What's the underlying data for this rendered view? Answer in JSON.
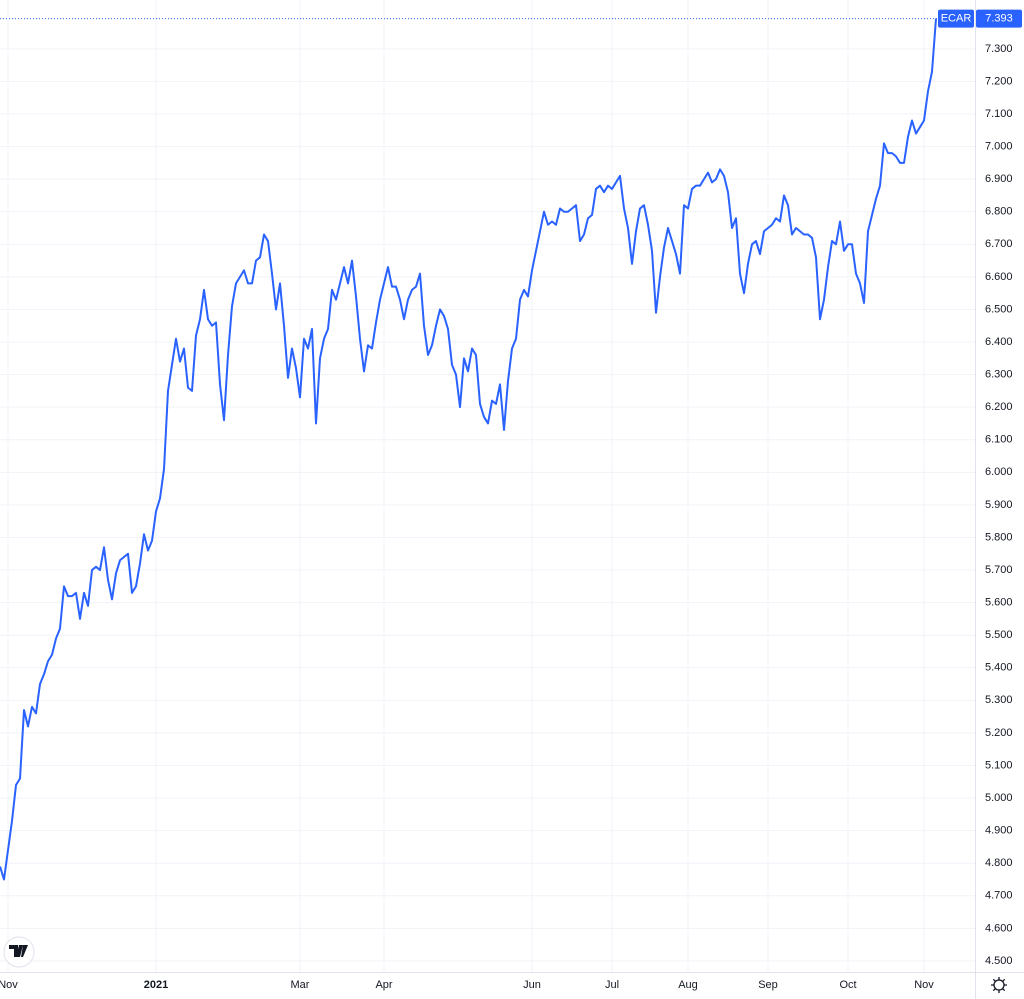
{
  "chart_data": {
    "type": "line",
    "series": [
      {
        "name": "ECAR",
        "color": "#2962ff",
        "values": [
          4.79,
          4.75,
          4.84,
          4.93,
          5.04,
          5.06,
          5.27,
          5.22,
          5.28,
          5.26,
          5.35,
          5.38,
          5.42,
          5.44,
          5.49,
          5.52,
          5.65,
          5.62,
          5.62,
          5.63,
          5.55,
          5.63,
          5.59,
          5.7,
          5.71,
          5.7,
          5.77,
          5.67,
          5.61,
          5.69,
          5.73,
          5.74,
          5.75,
          5.63,
          5.65,
          5.72,
          5.81,
          5.76,
          5.79,
          5.88,
          5.92,
          6.01,
          6.25,
          6.33,
          6.41,
          6.34,
          6.38,
          6.26,
          6.25,
          6.42,
          6.47,
          6.56,
          6.47,
          6.45,
          6.46,
          6.27,
          6.16,
          6.36,
          6.51,
          6.58,
          6.6,
          6.62,
          6.58,
          6.58,
          6.65,
          6.66,
          6.73,
          6.71,
          6.61,
          6.5,
          6.58,
          6.45,
          6.29,
          6.38,
          6.32,
          6.23,
          6.41,
          6.38,
          6.44,
          6.15,
          6.35,
          6.41,
          6.44,
          6.56,
          6.53,
          6.58,
          6.63,
          6.58,
          6.65,
          6.54,
          6.41,
          6.31,
          6.39,
          6.38,
          6.46,
          6.53,
          6.58,
          6.63,
          6.57,
          6.57,
          6.53,
          6.47,
          6.53,
          6.56,
          6.57,
          6.61,
          6.45,
          6.36,
          6.39,
          6.45,
          6.5,
          6.48,
          6.44,
          6.33,
          6.3,
          6.2,
          6.35,
          6.31,
          6.38,
          6.36,
          6.21,
          6.17,
          6.15,
          6.22,
          6.21,
          6.27,
          6.13,
          6.28,
          6.38,
          6.41,
          6.53,
          6.56,
          6.54,
          6.62,
          6.68,
          6.74,
          6.8,
          6.76,
          6.77,
          6.76,
          6.81,
          6.8,
          6.8,
          6.81,
          6.82,
          6.71,
          6.73,
          6.78,
          6.79,
          6.87,
          6.88,
          6.86,
          6.88,
          6.87,
          6.89,
          6.91,
          6.81,
          6.75,
          6.64,
          6.74,
          6.81,
          6.82,
          6.76,
          6.68,
          6.49,
          6.6,
          6.69,
          6.75,
          6.71,
          6.67,
          6.61,
          6.82,
          6.81,
          6.87,
          6.88,
          6.88,
          6.9,
          6.92,
          6.89,
          6.9,
          6.93,
          6.91,
          6.86,
          6.75,
          6.78,
          6.61,
          6.55,
          6.64,
          6.7,
          6.71,
          6.67,
          6.74,
          6.75,
          6.76,
          6.78,
          6.77,
          6.85,
          6.82,
          6.73,
          6.75,
          6.74,
          6.73,
          6.73,
          6.72,
          6.66,
          6.47,
          6.53,
          6.63,
          6.71,
          6.7,
          6.77,
          6.68,
          6.7,
          6.7,
          6.61,
          6.58,
          6.52,
          6.74,
          6.79,
          6.84,
          6.88,
          7.01,
          6.98,
          6.98,
          6.97,
          6.95,
          6.95,
          7.03,
          7.08,
          7.04,
          7.06,
          7.08,
          7.17,
          7.23,
          7.393
        ]
      }
    ],
    "xlim": [
      0,
      243.75
    ],
    "xticks": [
      {
        "value": 2,
        "label": "Nov"
      },
      {
        "value": 39,
        "label": "2021"
      },
      {
        "value": 75,
        "label": "Mar"
      },
      {
        "value": 96,
        "label": "Apr"
      },
      {
        "value": 133,
        "label": "Jun"
      },
      {
        "value": 153,
        "label": "Jul"
      },
      {
        "value": 172,
        "label": "Aug"
      },
      {
        "value": 192,
        "label": "Sep"
      },
      {
        "value": 212,
        "label": "Oct"
      },
      {
        "value": 231,
        "label": "Nov"
      }
    ],
    "ylim": [
      4.466,
      7.45
    ],
    "yticks": [
      {
        "value": 4.5,
        "label": "4.500"
      },
      {
        "value": 4.6,
        "label": "4.600"
      },
      {
        "value": 4.7,
        "label": "4.700"
      },
      {
        "value": 4.8,
        "label": "4.800"
      },
      {
        "value": 4.9,
        "label": "4.900"
      },
      {
        "value": 5.0,
        "label": "5.000"
      },
      {
        "value": 5.1,
        "label": "5.100"
      },
      {
        "value": 5.2,
        "label": "5.200"
      },
      {
        "value": 5.3,
        "label": "5.300"
      },
      {
        "value": 5.4,
        "label": "5.400"
      },
      {
        "value": 5.5,
        "label": "5.500"
      },
      {
        "value": 5.6,
        "label": "5.600"
      },
      {
        "value": 5.7,
        "label": "5.700"
      },
      {
        "value": 5.8,
        "label": "5.800"
      },
      {
        "value": 5.9,
        "label": "5.900"
      },
      {
        "value": 6.0,
        "label": "6.000"
      },
      {
        "value": 6.1,
        "label": "6.100"
      },
      {
        "value": 6.2,
        "label": "6.200"
      },
      {
        "value": 6.3,
        "label": "6.300"
      },
      {
        "value": 6.4,
        "label": "6.400"
      },
      {
        "value": 6.5,
        "label": "6.500"
      },
      {
        "value": 6.6,
        "label": "6.600"
      },
      {
        "value": 6.7,
        "label": "6.700"
      },
      {
        "value": 6.8,
        "label": "6.800"
      },
      {
        "value": 6.9,
        "label": "6.900"
      },
      {
        "value": 7.0,
        "label": "7.000"
      },
      {
        "value": 7.1,
        "label": "7.100"
      },
      {
        "value": 7.2,
        "label": "7.200"
      },
      {
        "value": 7.3,
        "label": "7.300"
      }
    ],
    "grid": true
  }
}
